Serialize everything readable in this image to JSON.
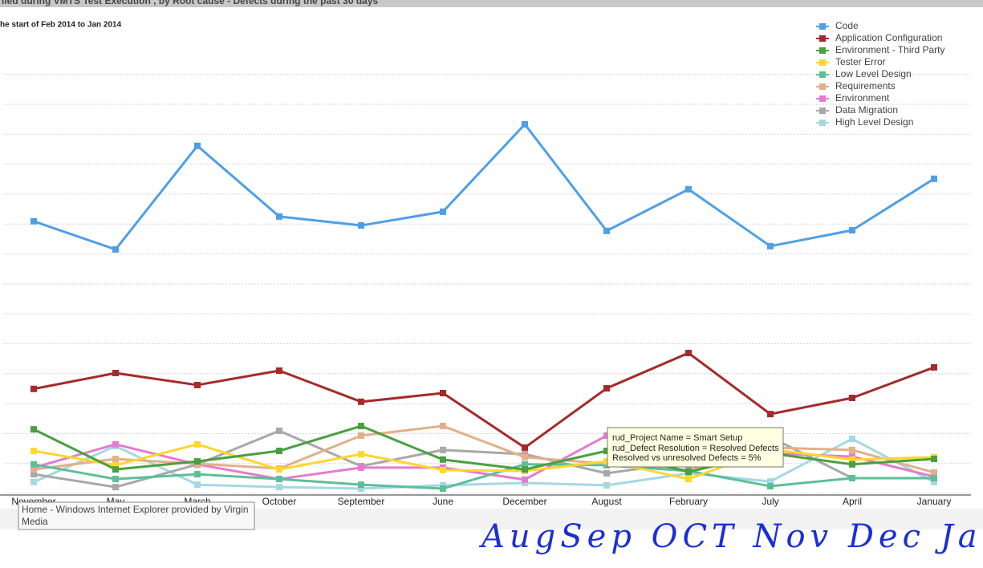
{
  "chart_data": {
    "type": "line",
    "title": "lied during VMTS  Test  Execution , by Root cause - Defects during the past 30 days",
    "subtitle": "he start of Feb 2014 to Jan 2014",
    "categories": [
      "November",
      "May",
      "March",
      "October",
      "September",
      "June",
      "December",
      "August",
      "February",
      "July",
      "April",
      "January"
    ],
    "series": [
      {
        "name": "Code",
        "color": "#4f9fe6",
        "values": [
          9.09,
          8.15,
          11.61,
          9.25,
          8.95,
          9.41,
          12.33,
          8.77,
          10.16,
          8.26,
          8.79,
          10.51
        ]
      },
      {
        "name": "Application Configuration",
        "color": "#a52a2a",
        "values": [
          3.49,
          4.02,
          3.62,
          4.1,
          3.06,
          3.35,
          1.53,
          3.51,
          4.69,
          2.65,
          3.19,
          4.21
        ]
      },
      {
        "name": "Environment - Third Party",
        "color": "#4aa040",
        "values": [
          2.14,
          0.8,
          1.07,
          1.42,
          2.25,
          1.13,
          0.8,
          1.42,
          0.72,
          1.34,
          0.97,
          1.15
        ]
      },
      {
        "name": "Tester Error",
        "color": "#ffd62e",
        "values": [
          1.42,
          0.94,
          1.64,
          0.8,
          1.31,
          0.78,
          0.75,
          1.07,
          0.48,
          1.47,
          1.13,
          1.21
        ]
      },
      {
        "name": "Low Level Design",
        "color": "#5cbf9a",
        "values": [
          0.97,
          0.48,
          0.64,
          0.48,
          0.29,
          0.16,
          0.97,
          0.94,
          0.75,
          0.24,
          0.51,
          0.51
        ]
      },
      {
        "name": "Requirements",
        "color": "#e3b08a",
        "values": [
          0.8,
          1.15,
          0.99,
          0.83,
          1.93,
          2.25,
          1.21,
          0.99,
          0.78,
          1.53,
          1.45,
          0.7
        ]
      },
      {
        "name": "Environment",
        "color": "#e57bd0",
        "values": [
          0.86,
          1.64,
          0.97,
          0.48,
          0.86,
          0.86,
          0.46,
          1.93,
          1.26,
          1.34,
          1.23,
          0.56
        ]
      },
      {
        "name": "Data Migration",
        "color": "#a8a8a8",
        "values": [
          0.64,
          0.21,
          0.97,
          2.09,
          0.91,
          1.45,
          1.31,
          0.67,
          1.05,
          1.88,
          0.51,
          0.51
        ]
      },
      {
        "name": "High Level Design",
        "color": "#a5d8e3",
        "values": [
          0.38,
          1.58,
          0.29,
          0.21,
          0.16,
          0.27,
          0.35,
          0.27,
          0.67,
          0.4,
          1.82,
          0.38
        ]
      }
    ],
    "ylim": [
      0,
      16
    ],
    "yticks": [
      0,
      1,
      2,
      3,
      4,
      5,
      6,
      7,
      8,
      9,
      10,
      11,
      12,
      13,
      14
    ],
    "grid": true,
    "legend": "top-right",
    "tooltip": [
      "rud_Project Name = Smart Setup",
      "rud_Defect Resolution = Resolved Defects",
      "Resolved vs unresolved Defects = 5%"
    ],
    "annotation": "AugSep  OCT Nov Dec Jan"
  },
  "browser_tooltip": "Home - Windows Internet Explorer provided by Virgin Media"
}
